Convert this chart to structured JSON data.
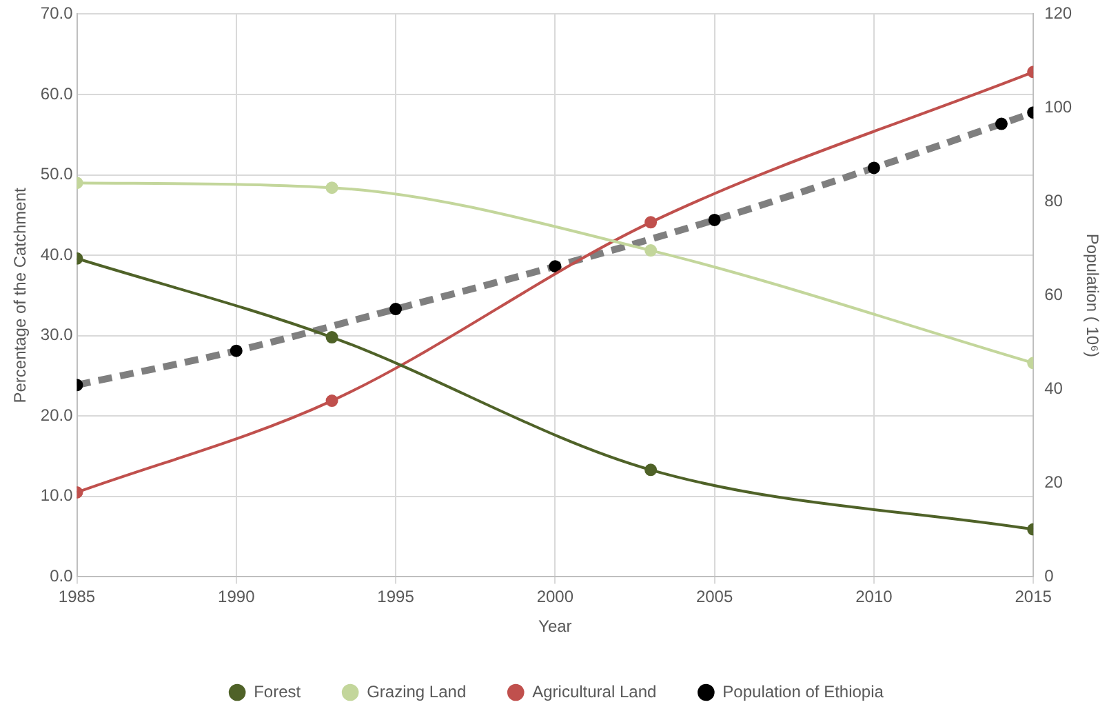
{
  "chart_data": {
    "type": "line",
    "xlabel": "Year",
    "ylabel": "Percentage of the Catchment",
    "y2label": "Population ( 10⁶)",
    "xlim": [
      1985,
      2015
    ],
    "xticks": [
      1985,
      1990,
      1995,
      2000,
      2005,
      2010,
      2015
    ],
    "ylim": [
      0,
      70
    ],
    "yticks": [
      {
        "value": 0,
        "label": "0.0"
      },
      {
        "value": 10,
        "label": "10.0"
      },
      {
        "value": 20,
        "label": "20.0"
      },
      {
        "value": 30,
        "label": "30.0"
      },
      {
        "value": 40,
        "label": "40.0"
      },
      {
        "value": 50,
        "label": "50.0"
      },
      {
        "value": 60,
        "label": "60.0"
      },
      {
        "value": 70,
        "label": "70.0"
      }
    ],
    "y2lim": [
      0,
      120
    ],
    "y2ticks": [
      0,
      20,
      40,
      60,
      80,
      100,
      120
    ],
    "grid": true,
    "legend": "bottom",
    "marker": "circle",
    "series": [
      {
        "name": "Forest",
        "color": "#4f6228",
        "x": [
          1985,
          1993,
          2003,
          2015
        ],
        "values": [
          39.6,
          29.8,
          13.3,
          5.9
        ]
      },
      {
        "name": "Grazing Land",
        "color": "#c3d69b",
        "x": [
          1985,
          1993,
          2003,
          2015
        ],
        "values": [
          49.0,
          48.4,
          40.6,
          26.6
        ]
      },
      {
        "name": "Agricultural Land",
        "color": "#c0504d",
        "x": [
          1985,
          1993,
          2003,
          2015
        ],
        "values": [
          10.5,
          21.9,
          44.1,
          62.8
        ]
      },
      {
        "name": "Population of Ethiopia",
        "color": "#7f7f7f",
        "colors": [
          "#000000",
          "#000000",
          "#000000",
          "#000000",
          "#000000",
          "#000000",
          "#000000",
          "#000000"
        ],
        "line_style": "dashed",
        "axis": "y2",
        "x": [
          1985,
          1990,
          1995,
          2000,
          2005,
          2010,
          2014,
          2015
        ],
        "values": [
          40.9,
          48.2,
          57.1,
          66.2,
          76.1,
          87.2,
          96.6,
          99.0
        ]
      }
    ]
  }
}
